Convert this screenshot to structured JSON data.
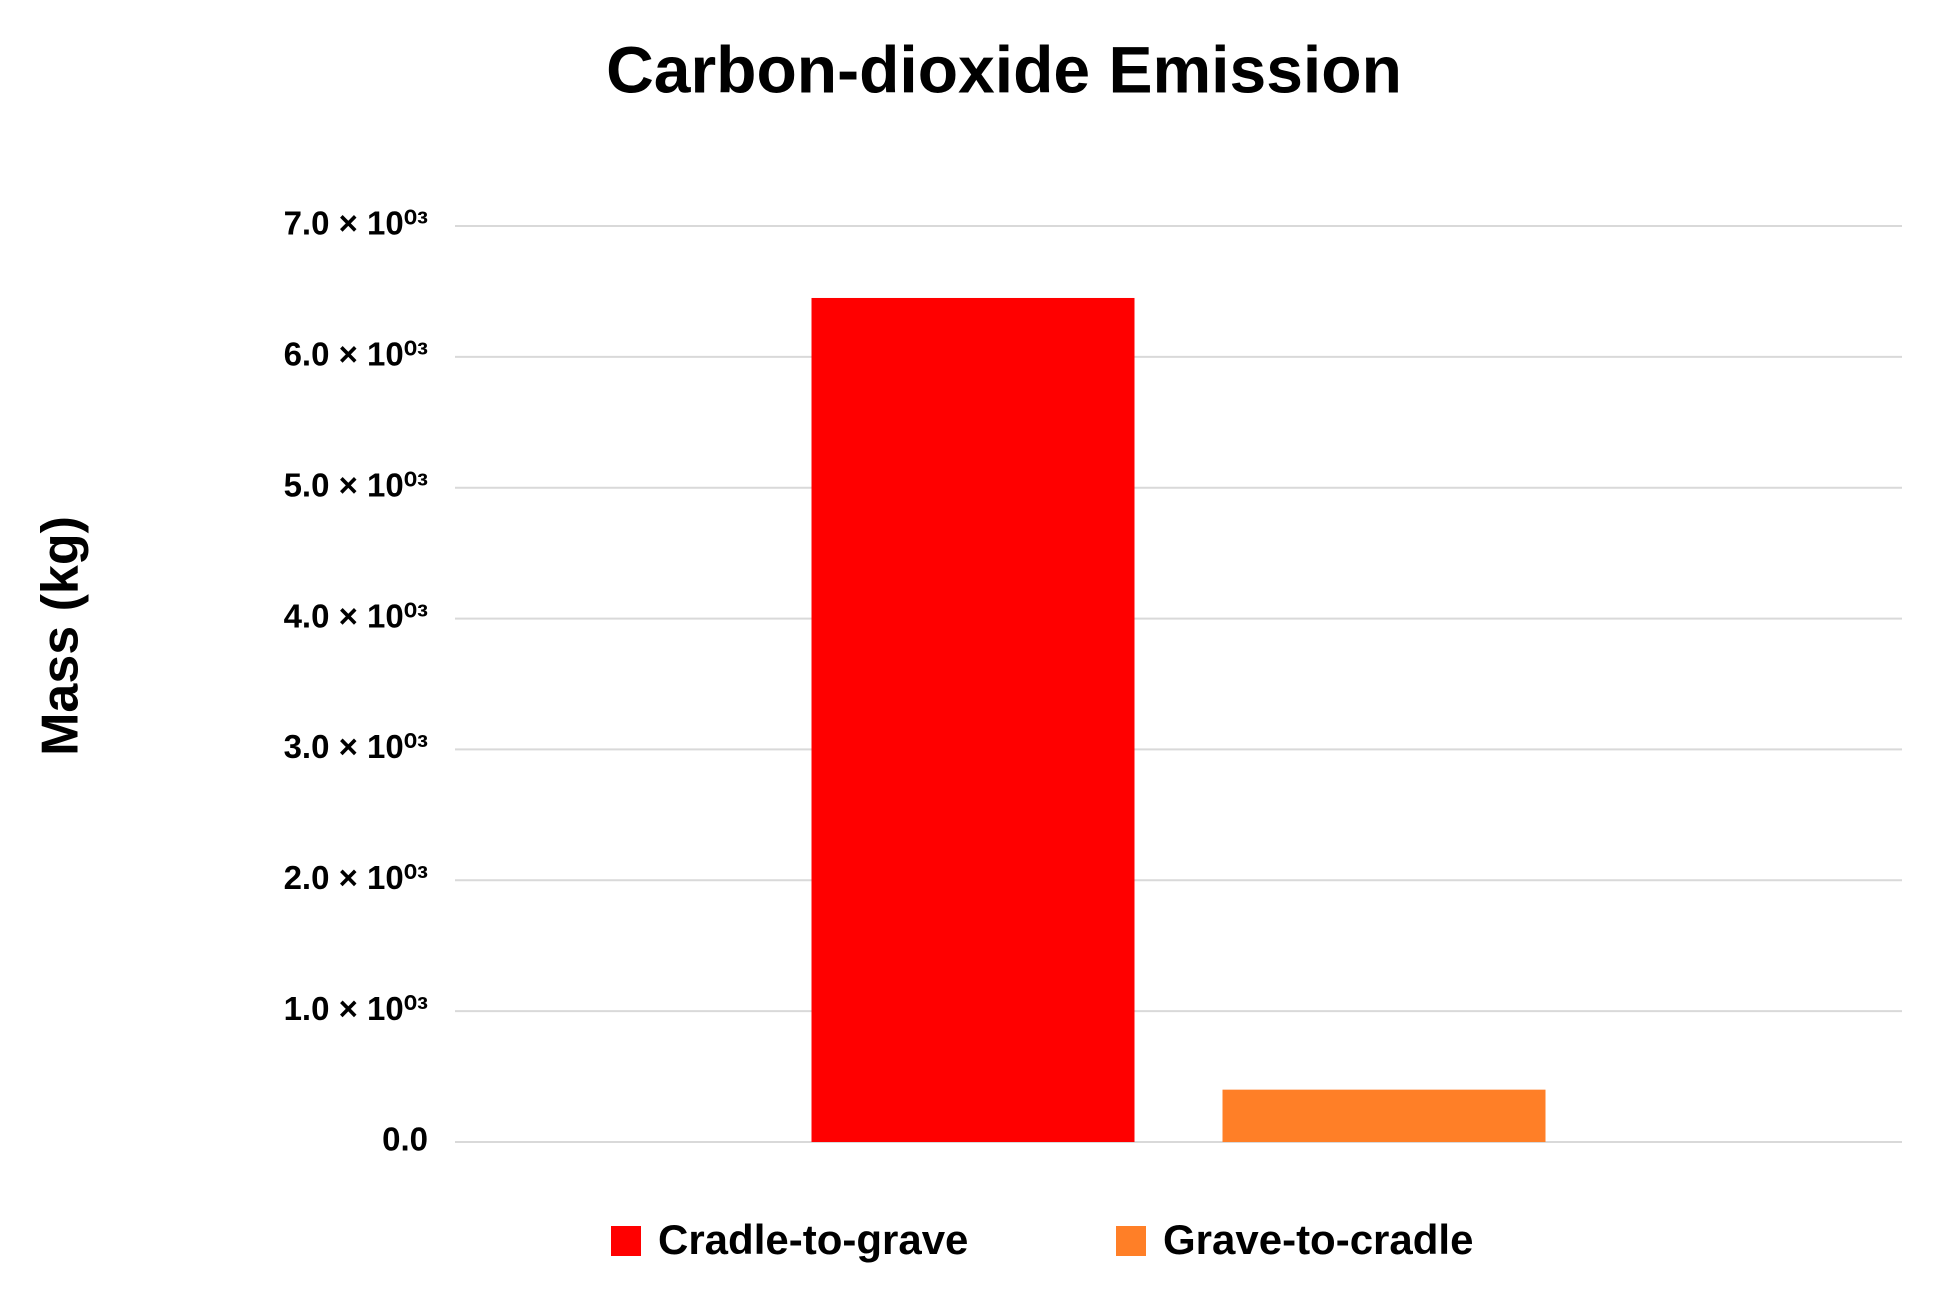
{
  "chart_data": {
    "type": "bar",
    "title": "Carbon-dioxide Emission",
    "y_label": "Mass (kg)",
    "categories": [
      null
    ],
    "series": [
      {
        "name": "Cradle-to-grave",
        "color": "#ff0000",
        "values": [
          6450
        ]
      },
      {
        "name": "Grave-to-cradle",
        "color": "#ff7f27",
        "values": [
          400
        ]
      }
    ],
    "ylim": [
      0,
      7000
    ],
    "yticks": [
      {
        "value": 0,
        "label": "0.0"
      },
      {
        "value": 1000,
        "label": "1.0 × 10⁰³"
      },
      {
        "value": 2000,
        "label": "2.0 × 10⁰³"
      },
      {
        "value": 3000,
        "label": "3.0 × 10⁰³"
      },
      {
        "value": 4000,
        "label": "4.0 × 10⁰³"
      },
      {
        "value": 5000,
        "label": "5.0 × 10⁰³"
      },
      {
        "value": 6000,
        "label": "6.0 × 10⁰³"
      },
      {
        "value": 7000,
        "label": "7.0 × 10⁰³"
      }
    ],
    "grid": true,
    "legend": "bottom"
  }
}
